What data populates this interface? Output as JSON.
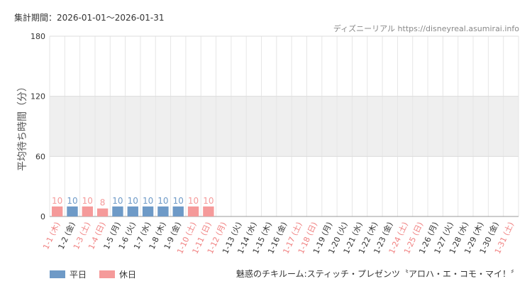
{
  "header": {
    "period_text": "集計期間：2026-01-01〜2026-01-31",
    "credit_text": "ディズニーリアル https://disneyreal.asumirai.info"
  },
  "footer": {
    "attraction_text": "魅惑のチキルーム:スティッチ・プレゼンツ〝アロハ・エ・コモ・マイ！〞"
  },
  "colors": {
    "weekday": "#6e9ac7",
    "holiday": "#f59a9a",
    "weekday_label": "#333333",
    "holiday_label": "#f08080",
    "band": "#efefef"
  },
  "chart_data": {
    "type": "bar",
    "ylabel": "平均待ち時間（分）",
    "ylim": [
      0,
      180
    ],
    "yticks": [
      0,
      60,
      120,
      180
    ],
    "categories": [
      "1-1 (木)",
      "1-2 (金)",
      "1-3 (土)",
      "1-4 (日)",
      "1-5 (月)",
      "1-6 (火)",
      "1-7 (水)",
      "1-8 (木)",
      "1-9 (金)",
      "1-10 (土)",
      "1-11 (日)",
      "1-12 (月)",
      "1-13 (火)",
      "1-14 (水)",
      "1-15 (木)",
      "1-16 (金)",
      "1-17 (土)",
      "1-18 (日)",
      "1-19 (月)",
      "1-20 (火)",
      "1-21 (水)",
      "1-22 (木)",
      "1-23 (金)",
      "1-24 (土)",
      "1-25 (日)",
      "1-26 (月)",
      "1-27 (火)",
      "1-28 (水)",
      "1-29 (木)",
      "1-30 (金)",
      "1-31 (土)"
    ],
    "values": [
      10,
      10,
      10,
      8,
      10,
      10,
      10,
      10,
      10,
      10,
      10,
      null,
      null,
      null,
      null,
      null,
      null,
      null,
      null,
      null,
      null,
      null,
      null,
      null,
      null,
      null,
      null,
      null,
      null,
      null,
      null
    ],
    "holiday": [
      true,
      false,
      true,
      true,
      false,
      false,
      false,
      false,
      false,
      true,
      true,
      true,
      false,
      false,
      false,
      false,
      true,
      true,
      false,
      false,
      false,
      false,
      false,
      true,
      true,
      false,
      false,
      false,
      false,
      false,
      true
    ],
    "series": [
      {
        "name": "平日",
        "color": "#6e9ac7"
      },
      {
        "name": "休日",
        "color": "#f59a9a"
      }
    ],
    "grid": true
  }
}
